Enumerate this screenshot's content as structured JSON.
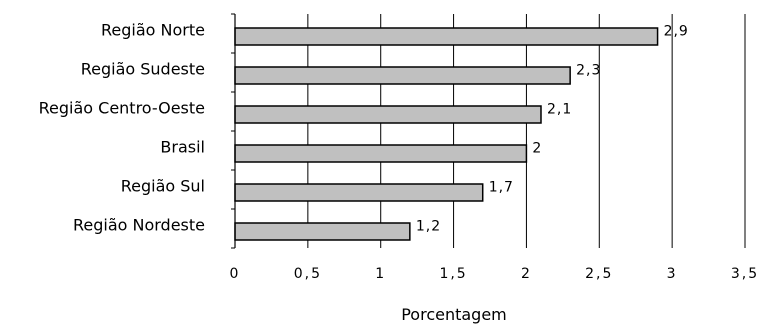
{
  "chart_data": {
    "type": "bar",
    "orientation": "horizontal",
    "categories": [
      "Região Norte",
      "Região Sudeste",
      "Região Centro-Oeste",
      "Brasil",
      "Região Sul",
      "Região Nordeste"
    ],
    "values": [
      2.9,
      2.3,
      2.1,
      2,
      1.7,
      1.2
    ],
    "value_labels": [
      "2,9",
      "2,3",
      "2,1",
      "2",
      "1,7",
      "1,2"
    ],
    "xlabel": "Porcentagem",
    "ylabel": "",
    "xlim": [
      0,
      3.5
    ],
    "xticks": [
      0,
      0.5,
      1,
      1.5,
      2,
      2.5,
      3,
      3.5
    ],
    "xtick_labels": [
      "0",
      "0,5",
      "1",
      "1,5",
      "2",
      "2,5",
      "3",
      "3,5"
    ],
    "grid": true,
    "bar_color": "#c0c0c0",
    "bar_edge_color": "#000000"
  }
}
